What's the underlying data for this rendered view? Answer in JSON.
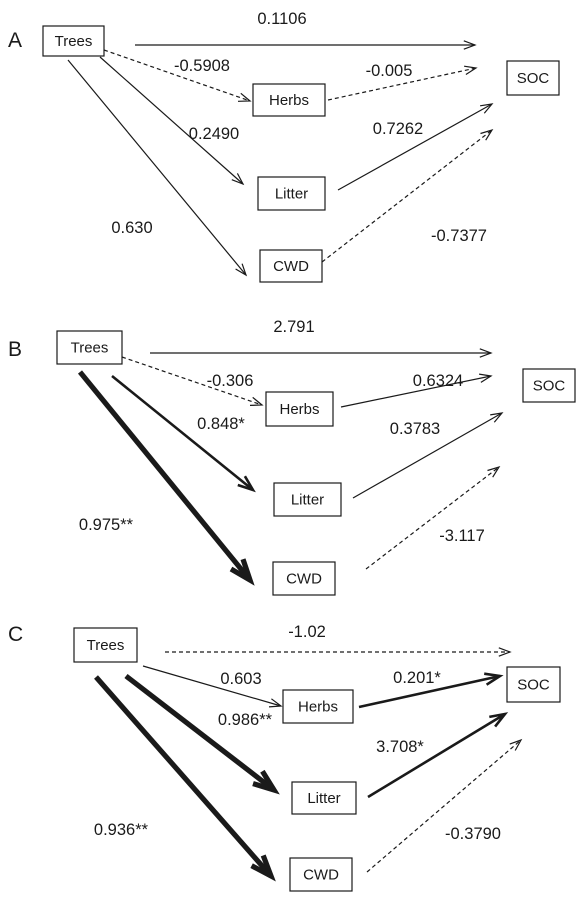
{
  "panels": [
    {
      "id": "A",
      "letter": "A",
      "nodes": {
        "trees": "Trees",
        "herbs": "Herbs",
        "litter": "Litter",
        "cwd": "CWD",
        "soc": "SOC"
      },
      "paths": [
        {
          "from": "trees",
          "to": "soc",
          "coefficient": "0.1106",
          "line": "solid",
          "weight": "thin"
        },
        {
          "from": "trees",
          "to": "herbs",
          "coefficient": "-0.5908",
          "line": "dashed",
          "weight": "thin"
        },
        {
          "from": "herbs",
          "to": "soc",
          "coefficient": "-0.005",
          "line": "dashed",
          "weight": "thin"
        },
        {
          "from": "trees",
          "to": "litter",
          "coefficient": "0.2490",
          "line": "solid",
          "weight": "thin"
        },
        {
          "from": "litter",
          "to": "soc",
          "coefficient": "0.7262",
          "line": "solid",
          "weight": "thin"
        },
        {
          "from": "trees",
          "to": "cwd",
          "coefficient": "0.630",
          "line": "solid",
          "weight": "thin"
        },
        {
          "from": "cwd",
          "to": "soc",
          "coefficient": "-0.7377",
          "line": "dashed",
          "weight": "thin"
        }
      ]
    },
    {
      "id": "B",
      "letter": "B",
      "nodes": {
        "trees": "Trees",
        "herbs": "Herbs",
        "litter": "Litter",
        "cwd": "CWD",
        "soc": "SOC"
      },
      "paths": [
        {
          "from": "trees",
          "to": "soc",
          "coefficient": "2.791",
          "line": "solid",
          "weight": "thin"
        },
        {
          "from": "trees",
          "to": "herbs",
          "coefficient": "-0.306",
          "line": "dashed",
          "weight": "thin"
        },
        {
          "from": "herbs",
          "to": "soc",
          "coefficient": "0.6324",
          "line": "solid",
          "weight": "thin"
        },
        {
          "from": "trees",
          "to": "litter",
          "coefficient": "0.848*",
          "line": "solid",
          "weight": "medium"
        },
        {
          "from": "litter",
          "to": "soc",
          "coefficient": "0.3783",
          "line": "solid",
          "weight": "thin"
        },
        {
          "from": "trees",
          "to": "cwd",
          "coefficient": "0.975**",
          "line": "solid",
          "weight": "thick"
        },
        {
          "from": "cwd",
          "to": "soc",
          "coefficient": "-3.117",
          "line": "dashed",
          "weight": "thin"
        }
      ]
    },
    {
      "id": "C",
      "letter": "C",
      "nodes": {
        "trees": "Trees",
        "herbs": "Herbs",
        "litter": "Litter",
        "cwd": "CWD",
        "soc": "SOC"
      },
      "paths": [
        {
          "from": "trees",
          "to": "soc",
          "coefficient": "-1.02",
          "line": "dashed",
          "weight": "thin"
        },
        {
          "from": "trees",
          "to": "herbs",
          "coefficient": "0.603",
          "line": "solid",
          "weight": "thin"
        },
        {
          "from": "herbs",
          "to": "soc",
          "coefficient": "0.201*",
          "line": "solid",
          "weight": "medium"
        },
        {
          "from": "trees",
          "to": "litter",
          "coefficient": "0.986**",
          "line": "solid",
          "weight": "thick"
        },
        {
          "from": "litter",
          "to": "soc",
          "coefficient": "3.708*",
          "line": "solid",
          "weight": "medium"
        },
        {
          "from": "trees",
          "to": "cwd",
          "coefficient": "0.936**",
          "line": "solid",
          "weight": "thick"
        },
        {
          "from": "cwd",
          "to": "soc",
          "coefficient": "-0.3790",
          "line": "dashed",
          "weight": "thin"
        }
      ]
    }
  ]
}
